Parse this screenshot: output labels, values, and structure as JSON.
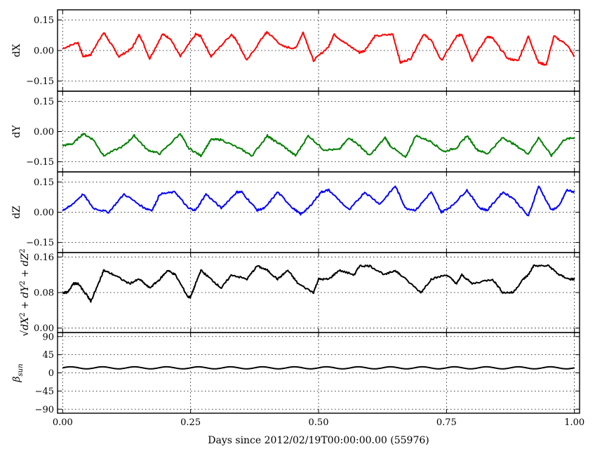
{
  "chart_data": {
    "type": "line",
    "xlabel": "Days since 2012/02/19T00:00:00.00 (55976)",
    "xlim": [
      -0.01,
      1.01
    ],
    "xticks": [
      0.0,
      0.25,
      0.5,
      0.75,
      1.0
    ],
    "xtick_labels": [
      "0.00",
      "0.25",
      "0.50",
      "0.75",
      "1.00"
    ],
    "grid": true,
    "panels": [
      {
        "ylabel": "dX",
        "ylabel_mathtext": false,
        "ylim": [
          -0.2,
          0.2
        ],
        "yticks": [
          -0.15,
          0.0,
          0.15
        ],
        "ytick_labels": [
          "-0.15",
          "0.00",
          "0.15"
        ],
        "color": "#ff0000",
        "series": [
          {
            "x": [
              0.0,
              0.03,
              0.04,
              0.055,
              0.08,
              0.09,
              0.11,
              0.135,
              0.15,
              0.17,
              0.195,
              0.21,
              0.23,
              0.26,
              0.27,
              0.29,
              0.33,
              0.34,
              0.36,
              0.395,
              0.4,
              0.43,
              0.455,
              0.47,
              0.49,
              0.52,
              0.53,
              0.55,
              0.58,
              0.59,
              0.61,
              0.645,
              0.66,
              0.68,
              0.705,
              0.72,
              0.74,
              0.77,
              0.78,
              0.8,
              0.83,
              0.84,
              0.87,
              0.89,
              0.91,
              0.93,
              0.945,
              0.96,
              0.985,
              1.0
            ],
            "y": [
              0.01,
              0.04,
              -0.03,
              -0.02,
              0.09,
              0.05,
              -0.03,
              0.01,
              0.08,
              -0.04,
              0.08,
              0.06,
              -0.03,
              0.08,
              0.07,
              -0.03,
              0.08,
              0.05,
              -0.05,
              0.08,
              0.09,
              0.02,
              0.01,
              0.09,
              -0.05,
              0.02,
              0.08,
              0.04,
              -0.01,
              0.0,
              0.07,
              0.08,
              -0.06,
              -0.04,
              0.08,
              0.05,
              -0.05,
              0.07,
              0.08,
              -0.05,
              0.07,
              0.06,
              -0.04,
              -0.05,
              0.07,
              -0.06,
              -0.07,
              0.07,
              0.03,
              -0.03
            ]
          }
        ]
      },
      {
        "ylabel": "dY",
        "ylabel_mathtext": false,
        "ylim": [
          -0.2,
          0.2
        ],
        "yticks": [
          -0.15,
          0.0,
          0.15
        ],
        "ytick_labels": [
          "-0.15",
          "0.00",
          "0.15"
        ],
        "color": "#008000",
        "series": [
          {
            "x": [
              0.0,
              0.02,
              0.04,
              0.06,
              0.08,
              0.12,
              0.14,
              0.165,
              0.19,
              0.23,
              0.245,
              0.27,
              0.29,
              0.31,
              0.35,
              0.37,
              0.4,
              0.41,
              0.43,
              0.455,
              0.48,
              0.51,
              0.54,
              0.56,
              0.58,
              0.6,
              0.63,
              0.64,
              0.67,
              0.69,
              0.72,
              0.745,
              0.77,
              0.79,
              0.81,
              0.83,
              0.86,
              0.88,
              0.91,
              0.93,
              0.955,
              0.98,
              1.0
            ],
            "y": [
              -0.07,
              -0.06,
              -0.01,
              -0.04,
              -0.12,
              -0.07,
              -0.02,
              -0.09,
              -0.11,
              -0.01,
              -0.08,
              -0.12,
              -0.04,
              -0.04,
              -0.09,
              -0.12,
              -0.02,
              -0.04,
              -0.07,
              -0.12,
              -0.02,
              -0.09,
              -0.09,
              -0.03,
              -0.07,
              -0.12,
              -0.03,
              -0.07,
              -0.13,
              -0.02,
              -0.05,
              -0.1,
              -0.08,
              -0.02,
              -0.09,
              -0.11,
              -0.03,
              -0.06,
              -0.11,
              -0.03,
              -0.12,
              -0.04,
              -0.03
            ]
          }
        ]
      },
      {
        "ylabel": "dZ",
        "ylabel_mathtext": false,
        "ylim": [
          -0.2,
          0.2
        ],
        "yticks": [
          -0.15,
          0.0,
          0.15
        ],
        "ytick_labels": [
          "-0.15",
          "0.00",
          "0.15"
        ],
        "color": "#0000ff",
        "series": [
          {
            "x": [
              0.0,
              0.015,
              0.04,
              0.06,
              0.09,
              0.12,
              0.16,
              0.175,
              0.19,
              0.22,
              0.245,
              0.26,
              0.28,
              0.31,
              0.34,
              0.35,
              0.38,
              0.395,
              0.42,
              0.45,
              0.465,
              0.48,
              0.505,
              0.52,
              0.56,
              0.59,
              0.62,
              0.65,
              0.67,
              0.69,
              0.72,
              0.74,
              0.76,
              0.79,
              0.815,
              0.83,
              0.86,
              0.88,
              0.91,
              0.93,
              0.955,
              0.97,
              0.985,
              1.0
            ],
            "y": [
              0.01,
              0.03,
              0.09,
              0.02,
              0.0,
              0.09,
              0.02,
              0.01,
              0.09,
              0.1,
              0.02,
              0.01,
              0.09,
              0.02,
              0.1,
              0.1,
              0.01,
              0.02,
              0.1,
              0.02,
              -0.01,
              0.02,
              0.1,
              0.11,
              0.01,
              0.1,
              0.04,
              0.13,
              0.02,
              0.01,
              0.1,
              0.0,
              0.03,
              0.11,
              0.02,
              0.01,
              0.1,
              0.07,
              -0.02,
              0.13,
              0.01,
              0.03,
              0.11,
              0.1
            ]
          }
        ]
      },
      {
        "ylabel": "√dX²+dY²+dZ²",
        "ylabel_mathtext": true,
        "ylim": [
          -0.01,
          0.17
        ],
        "yticks": [
          0.0,
          0.08,
          0.16
        ],
        "ytick_labels": [
          "0.00",
          "0.08",
          "0.16"
        ],
        "color": "#000000",
        "series": [
          {
            "x": [
              0.0,
              0.01,
              0.02,
              0.03,
              0.05,
              0.055,
              0.07,
              0.08,
              0.1,
              0.13,
              0.15,
              0.17,
              0.19,
              0.205,
              0.22,
              0.245,
              0.25,
              0.26,
              0.27,
              0.29,
              0.31,
              0.33,
              0.36,
              0.38,
              0.4,
              0.42,
              0.44,
              0.46,
              0.49,
              0.5,
              0.52,
              0.54,
              0.57,
              0.58,
              0.6,
              0.63,
              0.65,
              0.66,
              0.7,
              0.72,
              0.75,
              0.77,
              0.78,
              0.8,
              0.84,
              0.86,
              0.88,
              0.9,
              0.91,
              0.92,
              0.95,
              0.97,
              0.99,
              1.0
            ],
            "y": [
              0.08,
              0.08,
              0.1,
              0.1,
              0.07,
              0.06,
              0.1,
              0.13,
              0.12,
              0.1,
              0.11,
              0.09,
              0.11,
              0.13,
              0.12,
              0.07,
              0.07,
              0.1,
              0.13,
              0.11,
              0.09,
              0.12,
              0.11,
              0.14,
              0.13,
              0.11,
              0.13,
              0.1,
              0.08,
              0.11,
              0.11,
              0.13,
              0.12,
              0.14,
              0.14,
              0.12,
              0.13,
              0.12,
              0.08,
              0.11,
              0.12,
              0.1,
              0.12,
              0.1,
              0.11,
              0.08,
              0.08,
              0.11,
              0.12,
              0.14,
              0.14,
              0.12,
              0.11,
              0.11
            ]
          }
        ]
      },
      {
        "ylabel": "β_sun",
        "ylabel_mathtext": true,
        "ylim": [
          -100,
          100
        ],
        "yticks": [
          -90,
          -45,
          0,
          45,
          90
        ],
        "ytick_labels": [
          "-90",
          "-45",
          "0",
          "45",
          "90"
        ],
        "color": "#000000",
        "series": [
          {
            "type": "sinusoid",
            "x_start": 0.0,
            "x_end": 1.0,
            "mean": 12.5,
            "amplitude": 2.5,
            "cycles": 16
          }
        ]
      }
    ]
  }
}
